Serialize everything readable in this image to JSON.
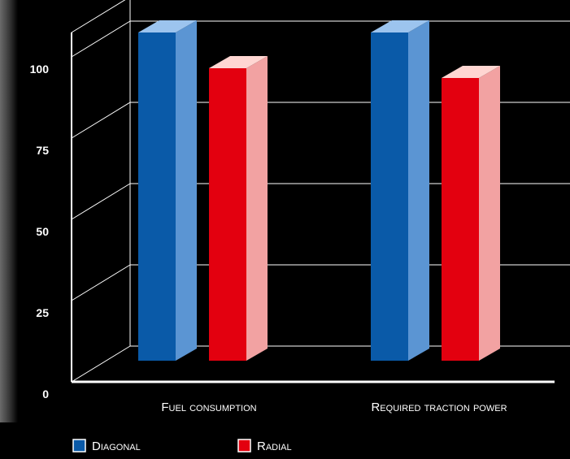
{
  "chart_data": {
    "type": "bar",
    "title": "",
    "xlabel": "",
    "ylabel": "",
    "ylim": [
      0,
      100
    ],
    "yticks": [
      0,
      25,
      50,
      75,
      100
    ],
    "categories": [
      "Fuel consumption",
      "Required traction power"
    ],
    "series": [
      {
        "name": "Diagonal",
        "values": [
          100,
          100
        ]
      },
      {
        "name": "Radial",
        "values": [
          89,
          86
        ]
      }
    ],
    "grid": true,
    "legend_position": "bottom-left",
    "style": "3d",
    "colors": {
      "Diagonal": {
        "front": "#0a5aa8",
        "side": "#5b95d3",
        "top": "#9cc4ee"
      },
      "Radial": {
        "front": "#e3000f",
        "side": "#f2a2a2",
        "top": "#ffd6d2"
      },
      "background": "#000000",
      "text": "#ffffff",
      "grid": "#ffffff"
    }
  }
}
